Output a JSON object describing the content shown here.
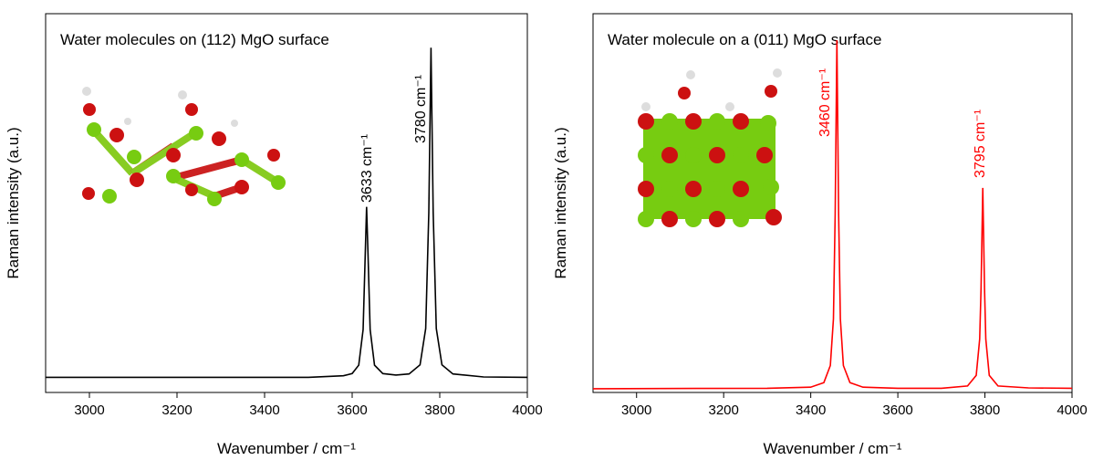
{
  "chart_data": [
    {
      "type": "line",
      "title": "Water molecules on (112) MgO surface",
      "xlabel": "Wavenumber / cm⁻¹",
      "ylabel": "Raman intensity (a.u.)",
      "x": [
        2900,
        3500,
        3580,
        3600,
        3615,
        3625,
        3630,
        3633,
        3636,
        3641,
        3651,
        3670,
        3700,
        3730,
        3755,
        3768,
        3775,
        3780,
        3785,
        3792,
        3805,
        3830,
        3900,
        4000
      ],
      "series": [
        {
          "color": "#000000",
          "values": [
            4,
            4,
            4.4,
            5,
            7.2,
            16.6,
            37.1,
            49,
            37.1,
            16.6,
            7.2,
            5,
            4.6,
            4.9,
            7.3,
            16.9,
            47.5,
            91,
            47.5,
            16.9,
            7.3,
            4.9,
            4.1,
            4
          ]
        }
      ],
      "annotations": [
        "3633 cm⁻¹",
        "3780 cm⁻¹"
      ],
      "xlim": [
        2900,
        4000
      ],
      "xticks": [
        3000,
        3200,
        3400,
        3600,
        3800,
        4000
      ],
      "ylim": [
        0,
        100
      ]
    },
    {
      "type": "line",
      "title": "Water molecule on a (011) MgO surface",
      "xlabel": "Wavenumber / cm⁻¹",
      "ylabel": "Raman intensity (a.u.)",
      "x": [
        2900,
        3300,
        3400,
        3430,
        3445,
        3452,
        3456,
        3460,
        3464,
        3468,
        3475,
        3490,
        3520,
        3600,
        3700,
        3760,
        3780,
        3788,
        3791,
        3795,
        3799,
        3802,
        3810,
        3830,
        3900,
        4000
      ],
      "series": [
        {
          "color": "#ff0000",
          "values": [
            1,
            1.1,
            1.4,
            2.6,
            7.1,
            19.4,
            47,
            93,
            47,
            19.4,
            7.1,
            2.6,
            1.4,
            1.1,
            1.1,
            1.7,
            4.5,
            14.1,
            27.5,
            54,
            27.5,
            14.1,
            4.5,
            1.7,
            1.2,
            1.1
          ]
        }
      ],
      "annotations": [
        "3460 cm⁻¹",
        "3795 cm⁻¹"
      ],
      "xlim": [
        2900,
        4000
      ],
      "xticks": [
        3000,
        3200,
        3400,
        3600,
        3800,
        4000
      ],
      "ylim": [
        0,
        100
      ]
    }
  ]
}
